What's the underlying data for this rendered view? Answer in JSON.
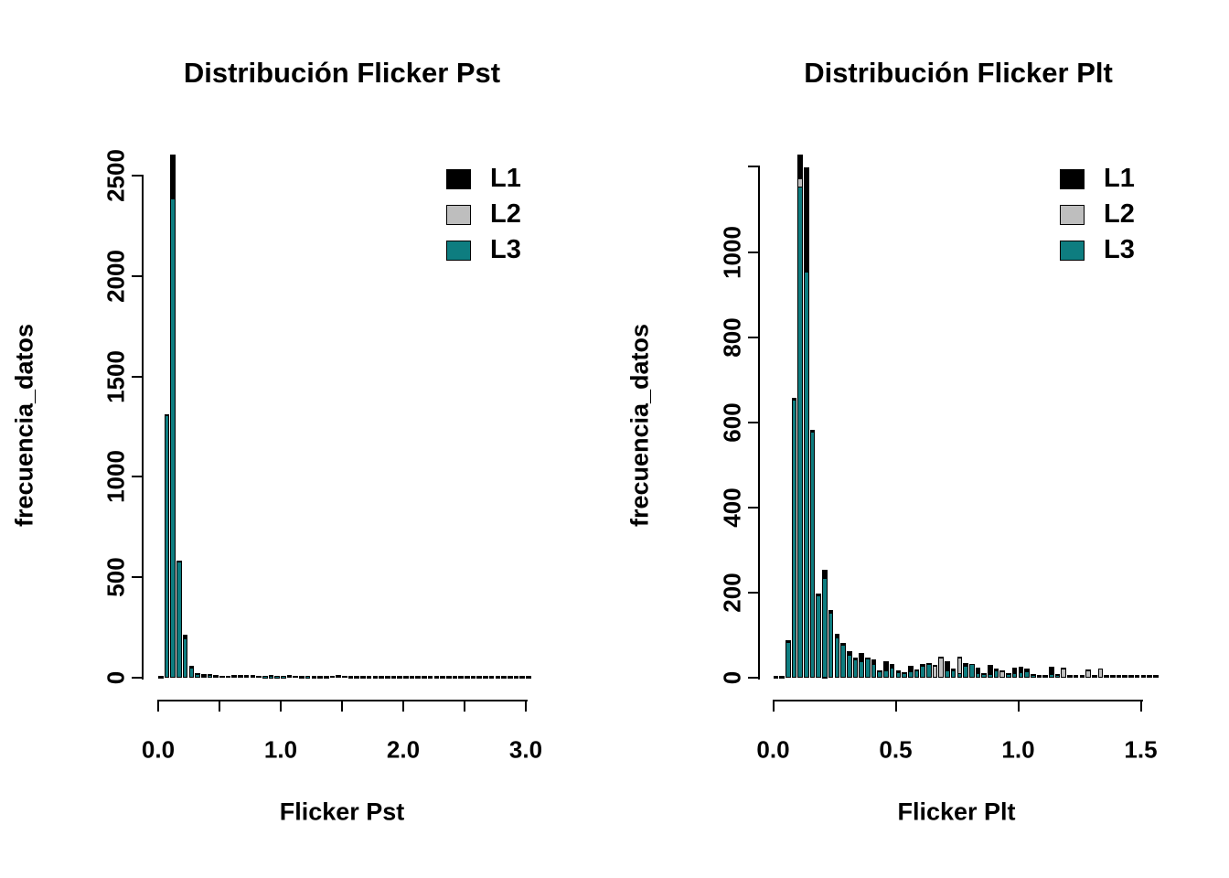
{
  "figure": {
    "background": "#ffffff",
    "text_color": "#000000"
  },
  "legend": {
    "items": [
      {
        "label": "L1",
        "color": "#000000"
      },
      {
        "label": "L2",
        "color": "#BEBEBE"
      },
      {
        "label": "L3",
        "color": "#0E7D80"
      }
    ]
  },
  "chart_data": [
    {
      "type": "bar",
      "subtype": "overlaid-histogram",
      "title": "Distribución Flicker Pst",
      "xlabel": "Flicker Pst",
      "ylabel": "frecuencia_datos",
      "xlim": [
        0.0,
        3.1
      ],
      "ylim": [
        0,
        2500
      ],
      "y_axis_end": 2500,
      "bin_width": 0.05,
      "grid": false,
      "legend_position": "top-right-inside",
      "series_names": [
        "L1",
        "L2",
        "L3"
      ],
      "series_colors": [
        "#000000",
        "#BEBEBE",
        "#0E7D80"
      ],
      "xticks": {
        "values": [
          0,
          0.5,
          1,
          1.5,
          2,
          2.5,
          3
        ],
        "labels": [
          "0.0",
          "",
          "1.0",
          "",
          "2.0",
          "",
          "3.0"
        ]
      },
      "yticks": {
        "values": [
          0,
          500,
          1000,
          1500,
          2000,
          2500
        ],
        "labels": [
          "0",
          "500",
          "1000",
          "1500",
          "2000",
          "2500"
        ]
      },
      "bins_note": "each bin = [x_start, L1_count, L2_count, L3_count]; L1 drawn behind, then L2, then L3 in front",
      "bins": [
        [
          0.0,
          1,
          0,
          0
        ],
        [
          0.05,
          1305,
          0,
          1300
        ],
        [
          0.1,
          2600,
          0,
          2380
        ],
        [
          0.15,
          575,
          0,
          570
        ],
        [
          0.2,
          205,
          0,
          188
        ],
        [
          0.25,
          52,
          0,
          42
        ],
        [
          0.3,
          16,
          0,
          10
        ],
        [
          0.35,
          13,
          0,
          4
        ],
        [
          0.4,
          11,
          0,
          5
        ],
        [
          0.45,
          5,
          0,
          3
        ],
        [
          0.5,
          4,
          0,
          0
        ],
        [
          0.55,
          4,
          0,
          3
        ],
        [
          0.6,
          8,
          0,
          4
        ],
        [
          0.65,
          8,
          0,
          3
        ],
        [
          0.7,
          7,
          0,
          3
        ],
        [
          0.75,
          5,
          0,
          3
        ],
        [
          0.8,
          3,
          0,
          0
        ],
        [
          0.85,
          3,
          0,
          2
        ],
        [
          0.9,
          6,
          0,
          2
        ],
        [
          0.95,
          4,
          0,
          2
        ],
        [
          1.0,
          4,
          0,
          2
        ],
        [
          1.05,
          6,
          0,
          3
        ],
        [
          1.1,
          3,
          0,
          0
        ],
        [
          1.15,
          2,
          0,
          0
        ],
        [
          1.2,
          3,
          0,
          2
        ],
        [
          1.25,
          2,
          0,
          0
        ],
        [
          1.3,
          2,
          0,
          0
        ],
        [
          1.35,
          2,
          0,
          0
        ],
        [
          1.4,
          3,
          0,
          0
        ],
        [
          1.45,
          7,
          0,
          3
        ],
        [
          1.5,
          3,
          0,
          0
        ],
        [
          1.55,
          2,
          0,
          0
        ],
        [
          1.6,
          2,
          0,
          0
        ],
        [
          1.65,
          2,
          0,
          0
        ],
        [
          1.7,
          2,
          0,
          0
        ],
        [
          1.75,
          2,
          0,
          0
        ],
        [
          1.8,
          2,
          0,
          0
        ],
        [
          1.85,
          2,
          0,
          0
        ],
        [
          1.9,
          2,
          0,
          0
        ],
        [
          1.95,
          2,
          0,
          0
        ],
        [
          2.0,
          2,
          0,
          0
        ],
        [
          2.05,
          2,
          0,
          0
        ],
        [
          2.1,
          2,
          0,
          0
        ],
        [
          2.15,
          2,
          0,
          0
        ],
        [
          2.2,
          2,
          0,
          0
        ],
        [
          2.25,
          2,
          0,
          0
        ],
        [
          2.3,
          2,
          0,
          0
        ],
        [
          2.35,
          2,
          0,
          0
        ],
        [
          2.4,
          2,
          0,
          0
        ],
        [
          2.45,
          2,
          0,
          0
        ],
        [
          2.5,
          2,
          0,
          0
        ],
        [
          2.55,
          2,
          0,
          0
        ],
        [
          2.6,
          2,
          0,
          0
        ],
        [
          2.65,
          2,
          0,
          0
        ],
        [
          2.7,
          2,
          0,
          0
        ],
        [
          2.75,
          2,
          0,
          0
        ],
        [
          2.8,
          2,
          0,
          0
        ],
        [
          2.85,
          2,
          0,
          0
        ],
        [
          2.9,
          2,
          0,
          0
        ],
        [
          2.95,
          2,
          0,
          0
        ],
        [
          3.0,
          2,
          0,
          0
        ]
      ]
    },
    {
      "type": "bar",
      "subtype": "overlaid-histogram",
      "title": "Distribución Flicker Plt",
      "xlabel": "Flicker Plt",
      "ylabel": "frecuencia_datos",
      "xlim": [
        0.0,
        1.58
      ],
      "ylim": [
        0,
        1200
      ],
      "y_axis_end": 1200,
      "bin_width": 0.025,
      "grid": false,
      "legend_position": "top-right-inside",
      "series_names": [
        "L1",
        "L2",
        "L3"
      ],
      "series_colors": [
        "#000000",
        "#BEBEBE",
        "#0E7D80"
      ],
      "xticks": {
        "values": [
          0,
          0.5,
          1,
          1.5
        ],
        "labels": [
          "0.0",
          "0.5",
          "1.0",
          "1.5"
        ]
      },
      "yticks": {
        "values": [
          0,
          200,
          400,
          600,
          800,
          1000,
          1200
        ],
        "labels": [
          "0",
          "200",
          "400",
          "600",
          "800",
          "1000",
          ""
        ]
      },
      "bins_note": "each bin = [x_start, L1_count, L2_count, L3_count]; L1 drawn behind, then L2, then L3 in front",
      "bins": [
        [
          0.0,
          1,
          0,
          0
        ],
        [
          0.025,
          1,
          0,
          0
        ],
        [
          0.05,
          85,
          0,
          80
        ],
        [
          0.075,
          655,
          0,
          650
        ],
        [
          0.1,
          1225,
          1170,
          1150
        ],
        [
          0.125,
          1195,
          0,
          950
        ],
        [
          0.15,
          580,
          0,
          575
        ],
        [
          0.175,
          195,
          0,
          190
        ],
        [
          0.2,
          250,
          0,
          230
        ],
        [
          0.225,
          155,
          0,
          150
        ],
        [
          0.25,
          100,
          0,
          92
        ],
        [
          0.275,
          78,
          0,
          75
        ],
        [
          0.3,
          60,
          0,
          50
        ],
        [
          0.325,
          45,
          0,
          40
        ],
        [
          0.35,
          55,
          0,
          35
        ],
        [
          0.375,
          45,
          0,
          42
        ],
        [
          0.4,
          40,
          0,
          30
        ],
        [
          0.425,
          15,
          0,
          12
        ],
        [
          0.45,
          35,
          0,
          15
        ],
        [
          0.475,
          28,
          0,
          20
        ],
        [
          0.5,
          14,
          0,
          10
        ],
        [
          0.525,
          10,
          0,
          8
        ],
        [
          0.55,
          24,
          0,
          12
        ],
        [
          0.575,
          16,
          0,
          14
        ],
        [
          0.6,
          28,
          0,
          24
        ],
        [
          0.625,
          32,
          0,
          30
        ],
        [
          0.65,
          26,
          25,
          0
        ],
        [
          0.675,
          46,
          45,
          0
        ],
        [
          0.7,
          36,
          0,
          15
        ],
        [
          0.725,
          18,
          0,
          14
        ],
        [
          0.75,
          46,
          44,
          8
        ],
        [
          0.775,
          32,
          0,
          25
        ],
        [
          0.8,
          30,
          0,
          28
        ],
        [
          0.825,
          20,
          0,
          8
        ],
        [
          0.85,
          8,
          0,
          5
        ],
        [
          0.875,
          26,
          0,
          6
        ],
        [
          0.9,
          18,
          0,
          15
        ],
        [
          0.925,
          13,
          12,
          0
        ],
        [
          0.95,
          8,
          0,
          5
        ],
        [
          0.975,
          20,
          0,
          8
        ],
        [
          1.0,
          22,
          0,
          10
        ],
        [
          1.025,
          18,
          0,
          12
        ],
        [
          1.05,
          6,
          0,
          3
        ],
        [
          1.075,
          4,
          0,
          0
        ],
        [
          1.1,
          4,
          0,
          0
        ],
        [
          1.125,
          22,
          0,
          5
        ],
        [
          1.15,
          6,
          0,
          3
        ],
        [
          1.175,
          20,
          19,
          0
        ],
        [
          1.2,
          4,
          0,
          0
        ],
        [
          1.225,
          3,
          0,
          0
        ],
        [
          1.25,
          3,
          0,
          0
        ],
        [
          1.275,
          16,
          15,
          0
        ],
        [
          1.3,
          4,
          0,
          0
        ],
        [
          1.325,
          19,
          18,
          0
        ],
        [
          1.35,
          4,
          0,
          0
        ],
        [
          1.375,
          3,
          0,
          0
        ],
        [
          1.4,
          3,
          0,
          0
        ],
        [
          1.425,
          3,
          0,
          0
        ],
        [
          1.45,
          3,
          0,
          0
        ],
        [
          1.475,
          3,
          0,
          0
        ],
        [
          1.5,
          3,
          0,
          0
        ],
        [
          1.525,
          3,
          0,
          0
        ],
        [
          1.55,
          3,
          0,
          0
        ]
      ]
    }
  ]
}
